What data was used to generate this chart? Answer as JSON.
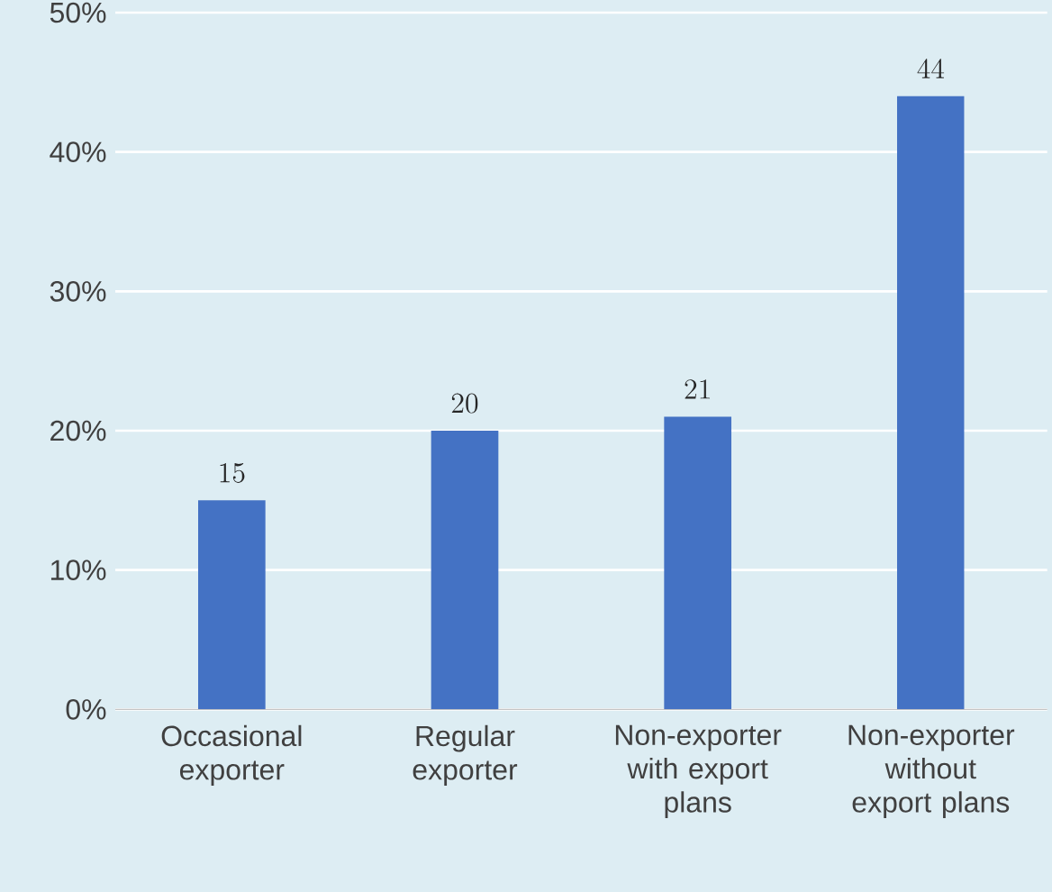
{
  "chart_data": {
    "type": "bar",
    "categories": [
      "Occasional exporter",
      "Regular exporter",
      "Non-exporter with export plans",
      "Non-exporter without export plans"
    ],
    "values": [
      15,
      20,
      21,
      44
    ],
    "color": "#4472c4",
    "ylim": [
      0,
      50
    ],
    "yticks": [
      {
        "value": 0,
        "label": "0%"
      },
      {
        "value": 10,
        "label": "10%"
      },
      {
        "value": 20,
        "label": "20%"
      },
      {
        "value": 30,
        "label": "30%"
      },
      {
        "value": 40,
        "label": "40%"
      },
      {
        "value": 50,
        "label": "50%"
      }
    ],
    "grid": "y",
    "data_labels": true
  }
}
